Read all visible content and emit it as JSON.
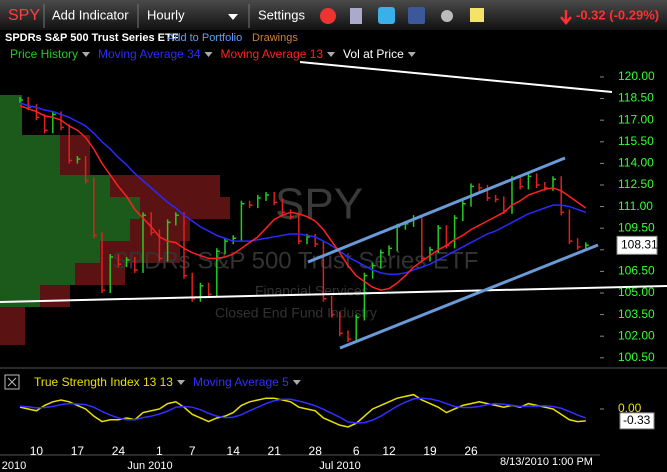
{
  "toolbar": {
    "symbol": "SPY",
    "add_indicator": "Add Indicator",
    "interval": "Hourly",
    "settings": "Settings",
    "change": "-0.32 (-0.29%)"
  },
  "info": {
    "name": "SPDRs S&P 500 Trust Series ETF",
    "add_to_portfolio": "Add to Portfolio",
    "drawings": "Drawings"
  },
  "watermark": {
    "symbol": "SPY",
    "name": "SPDRs S&P 500 Trust Series ETF",
    "sector": "Financial Services",
    "industry": "Closed End Fund Industry"
  },
  "timestamp": "8/13/2010 1:00 PM",
  "chart_data": [
    {
      "type": "stock",
      "categories": [
        null,
        null,
        "10",
        null,
        null,
        null,
        null,
        "17",
        null,
        null,
        null,
        null,
        "24",
        null,
        null,
        null,
        null,
        "1",
        null,
        null,
        null,
        "7",
        null,
        null,
        null,
        null,
        "14",
        null,
        null,
        null,
        null,
        "21",
        null,
        null,
        null,
        null,
        "28",
        null,
        null,
        null,
        null,
        "6",
        null,
        null,
        null,
        "12",
        null,
        null,
        null,
        null,
        "19",
        null,
        null,
        null,
        null,
        "26",
        null,
        null,
        null,
        null,
        null,
        null,
        null,
        null,
        null,
        null,
        null,
        null,
        null,
        null
      ],
      "x_group_labels": [
        "2010",
        "Jun 2010",
        "Jul 2010"
      ],
      "overlays": [
        "Vol at Price"
      ],
      "series": [
        {
          "name": "Price History",
          "color": "#22cc22",
          "down_color": "#e02020",
          "values": [
            118.4,
            117.9,
            117.2,
            116.3,
            117.4,
            116.5,
            114.2,
            114.3,
            112.8,
            109.0,
            105.2,
            107.5,
            107.0,
            107.3,
            106.6,
            110.4,
            109.2,
            107.4,
            109.9,
            110.4,
            106.2,
            104.6,
            105.5,
            104.9,
            107.9,
            108.6,
            108.8,
            111.2,
            111.1,
            111.6,
            111.8,
            111.3,
            110.6,
            110.3,
            108.6,
            108.9,
            108.4,
            104.6,
            103.5,
            102.2,
            101.8,
            103.3,
            106.2,
            106.9,
            107.8,
            108.1,
            109.6,
            109.8,
            110.2,
            107.4,
            108.0,
            109.5,
            108.3,
            110.2,
            111.2,
            112.4,
            112.3,
            111.6,
            111.5,
            110.7,
            112.9,
            112.4,
            113.1,
            112.5,
            112.3,
            112.9,
            110.6,
            108.6,
            108.2,
            108.31
          ],
          "value_labels": [
            null,
            null,
            null,
            null,
            null,
            null,
            null,
            null,
            null,
            null,
            null,
            null,
            null,
            null,
            null,
            null,
            null,
            null,
            null,
            null,
            null,
            null,
            null,
            null,
            null,
            null,
            null,
            null,
            null,
            null,
            null,
            null,
            null,
            null,
            null,
            null,
            null,
            null,
            null,
            null,
            null,
            null,
            null,
            null,
            null,
            null,
            null,
            null,
            null,
            null,
            null,
            null,
            null,
            null,
            null,
            null,
            null,
            null,
            null,
            null,
            null,
            null,
            null,
            null,
            null,
            null,
            null,
            null,
            null,
            "108.31"
          ]
        },
        {
          "name": "Moving Average 34",
          "color": "#2a2aff",
          "values": [
            118.2,
            118.0,
            117.9,
            117.7,
            117.6,
            117.4,
            117.2,
            116.9,
            116.6,
            116.1,
            115.5,
            115.0,
            114.4,
            113.9,
            113.3,
            112.8,
            112.3,
            111.8,
            111.3,
            110.9,
            110.4,
            110.0,
            109.6,
            109.3,
            109.0,
            108.8,
            108.6,
            108.6,
            108.6,
            108.7,
            108.8,
            108.9,
            109.0,
            109.1,
            109.1,
            109.0,
            108.9,
            108.6,
            108.3,
            107.9,
            107.5,
            107.2,
            106.9,
            106.6,
            106.4,
            106.3,
            106.3,
            106.4,
            106.6,
            106.8,
            107.0,
            107.3,
            107.6,
            107.9,
            108.2,
            108.5,
            108.8,
            109.1,
            109.3,
            109.6,
            109.9,
            110.2,
            110.5,
            110.7,
            110.9,
            111.1,
            111.1,
            111.0,
            110.8,
            110.6
          ]
        },
        {
          "name": "Moving Average 13",
          "color": "#ff2020",
          "values": [
            118.0,
            117.8,
            117.6,
            117.3,
            117.2,
            117.0,
            116.6,
            116.3,
            115.8,
            115.0,
            114.0,
            113.2,
            112.4,
            111.7,
            110.8,
            110.2,
            109.6,
            108.9,
            108.6,
            108.5,
            108.1,
            107.8,
            107.6,
            107.4,
            107.4,
            107.5,
            107.7,
            108.1,
            108.5,
            108.9,
            109.5,
            110.1,
            110.4,
            110.6,
            110.5,
            110.3,
            110.0,
            109.4,
            108.6,
            107.8,
            106.9,
            106.2,
            105.8,
            105.4,
            105.2,
            105.3,
            105.7,
            106.2,
            106.8,
            107.2,
            107.6,
            108.0,
            108.3,
            108.7,
            109.0,
            109.4,
            109.7,
            110.0,
            110.3,
            110.6,
            111.1,
            111.4,
            111.8,
            112.0,
            112.2,
            112.3,
            112.1,
            111.7,
            111.3,
            110.9
          ]
        }
      ],
      "ylim": [
        100.0,
        120.9
      ],
      "yticks": [
        {
          "value": 100.5,
          "label": "100.50"
        },
        {
          "value": 102,
          "label": "102.00"
        },
        {
          "value": 103.5,
          "label": "103.50"
        },
        {
          "value": 105,
          "label": "105.00"
        },
        {
          "value": 106.5,
          "label": "106.50"
        },
        {
          "value": 108,
          "label": "108.00"
        },
        {
          "value": 109.5,
          "label": "109.50"
        },
        {
          "value": 111,
          "label": "111.00"
        },
        {
          "value": 112.5,
          "label": "112.50"
        },
        {
          "value": 114,
          "label": "114.00"
        },
        {
          "value": 115.5,
          "label": "115.50"
        },
        {
          "value": 117,
          "label": "117.00"
        },
        {
          "value": 118.5,
          "label": "118.50"
        },
        {
          "value": 120,
          "label": "120.00"
        }
      ],
      "tick_color": "#33ff33"
    },
    {
      "type": "line",
      "series": [
        {
          "name": "True Strength Index 13 13",
          "color": "#e8e000",
          "values": [
            0.05,
            0.0,
            -0.05,
            0.1,
            0.2,
            0.25,
            0.2,
            0.1,
            0.0,
            -0.2,
            -0.35,
            -0.3,
            -0.3,
            -0.25,
            -0.3,
            -0.1,
            -0.05,
            0.0,
            0.15,
            0.2,
            0.05,
            -0.15,
            -0.25,
            -0.35,
            -0.25,
            -0.2,
            -0.1,
            0.1,
            0.2,
            0.25,
            0.3,
            0.3,
            0.25,
            0.2,
            0.05,
            0.0,
            -0.05,
            -0.25,
            -0.35,
            -0.45,
            -0.5,
            -0.4,
            -0.2,
            0.0,
            0.1,
            0.2,
            0.3,
            0.35,
            0.4,
            0.25,
            0.15,
            0.05,
            -0.1,
            0.0,
            0.1,
            0.15,
            0.2,
            0.15,
            0.1,
            0.05,
            0.1,
            0.05,
            0.15,
            0.1,
            0.05,
            0.0,
            -0.15,
            -0.3,
            -0.35,
            -0.33
          ],
          "value_labels": [
            null,
            null,
            null,
            null,
            null,
            null,
            null,
            null,
            null,
            null,
            null,
            null,
            null,
            null,
            null,
            null,
            null,
            null,
            null,
            null,
            null,
            null,
            null,
            null,
            null,
            null,
            null,
            null,
            null,
            null,
            null,
            null,
            null,
            null,
            null,
            null,
            null,
            null,
            null,
            null,
            null,
            null,
            null,
            null,
            null,
            null,
            null,
            null,
            null,
            null,
            null,
            null,
            null,
            null,
            null,
            null,
            null,
            null,
            null,
            null,
            null,
            null,
            null,
            null,
            null,
            null,
            null,
            null,
            null,
            "-0.33"
          ]
        },
        {
          "name": "Moving Average 5",
          "color": "#3030ff",
          "values": [
            0.08,
            0.06,
            0.03,
            0.04,
            0.07,
            0.12,
            0.15,
            0.14,
            0.12,
            0.05,
            -0.07,
            -0.17,
            -0.25,
            -0.3,
            -0.3,
            -0.24,
            -0.2,
            -0.14,
            -0.06,
            0.05,
            0.07,
            0.05,
            -0.02,
            -0.12,
            -0.2,
            -0.24,
            -0.23,
            -0.16,
            -0.05,
            0.05,
            0.15,
            0.23,
            0.27,
            0.27,
            0.22,
            0.16,
            0.09,
            -0.01,
            -0.12,
            -0.23,
            -0.36,
            -0.39,
            -0.38,
            -0.31,
            -0.2,
            -0.06,
            0.08,
            0.19,
            0.28,
            0.3,
            0.28,
            0.23,
            0.15,
            0.07,
            0.04,
            0.04,
            0.07,
            0.12,
            0.15,
            0.13,
            0.1,
            0.07,
            0.08,
            0.08,
            0.09,
            0.07,
            0.02,
            -0.07,
            -0.17,
            -0.25
          ]
        }
      ],
      "ylim": [
        -1.28,
        0.5
      ],
      "yticks": [
        {
          "value": 0,
          "label": "0.00"
        }
      ],
      "tick_color": "#e8e000"
    }
  ]
}
